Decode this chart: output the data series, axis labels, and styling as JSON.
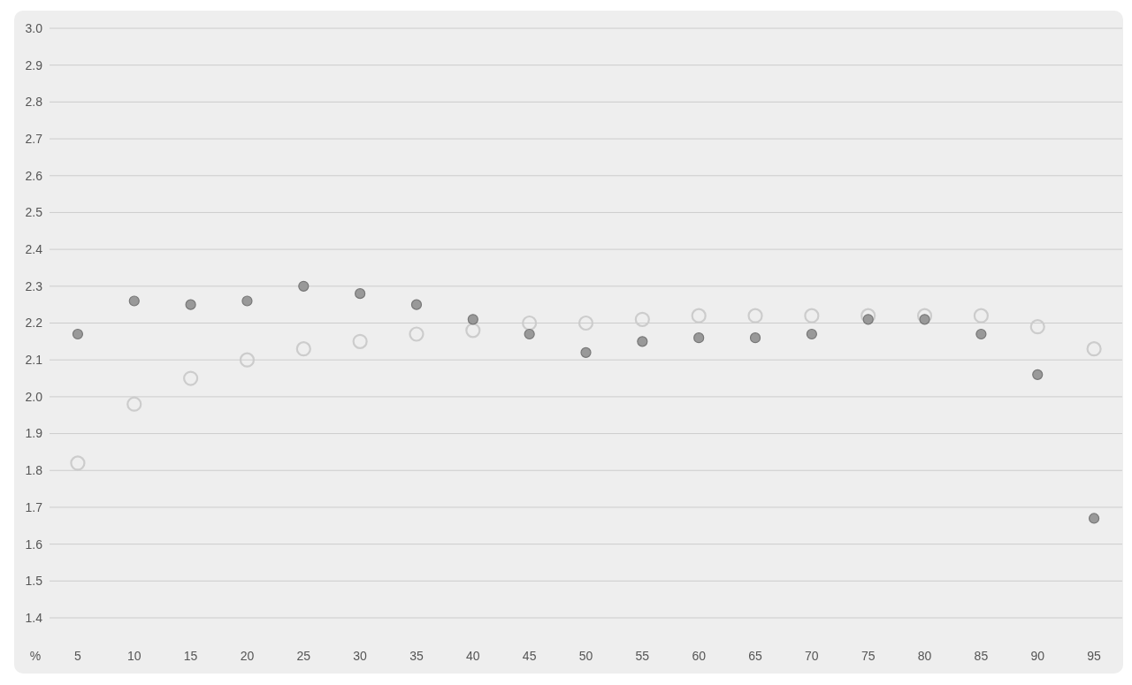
{
  "chart_data": {
    "type": "scatter",
    "xlabel": "%",
    "categories": [
      "5",
      "10",
      "15",
      "20",
      "25",
      "30",
      "35",
      "40",
      "45",
      "50",
      "55",
      "60",
      "65",
      "70",
      "75",
      "80",
      "85",
      "90",
      "95"
    ],
    "series": [
      {
        "color": "#cccccc",
        "values": [
          1.82,
          1.98,
          2.05,
          2.1,
          2.13,
          2.15,
          2.17,
          2.18,
          2.2,
          2.2,
          2.21,
          2.22,
          2.22,
          2.22,
          2.22,
          2.22,
          2.22,
          2.19,
          2.13
        ]
      },
      {
        "color": "#999999",
        "values": [
          2.17,
          2.26,
          2.25,
          2.26,
          2.3,
          2.28,
          2.25,
          2.21,
          2.17,
          2.12,
          2.15,
          2.16,
          2.16,
          2.17,
          2.21,
          2.21,
          2.17,
          2.06,
          1.67
        ]
      }
    ],
    "ylim": [
      1.4,
      3.0
    ],
    "yticks": [
      1.4,
      1.5,
      1.6,
      1.7,
      1.8,
      1.9,
      {
        "value": 2,
        "label": "2.0"
      },
      2.1,
      2.2,
      2.3,
      2.4,
      2.5,
      2.6,
      2.7,
      2.8,
      2.9,
      {
        "value": 3,
        "label": "3.0"
      }
    ],
    "grid": "y",
    "marker": "circle"
  }
}
